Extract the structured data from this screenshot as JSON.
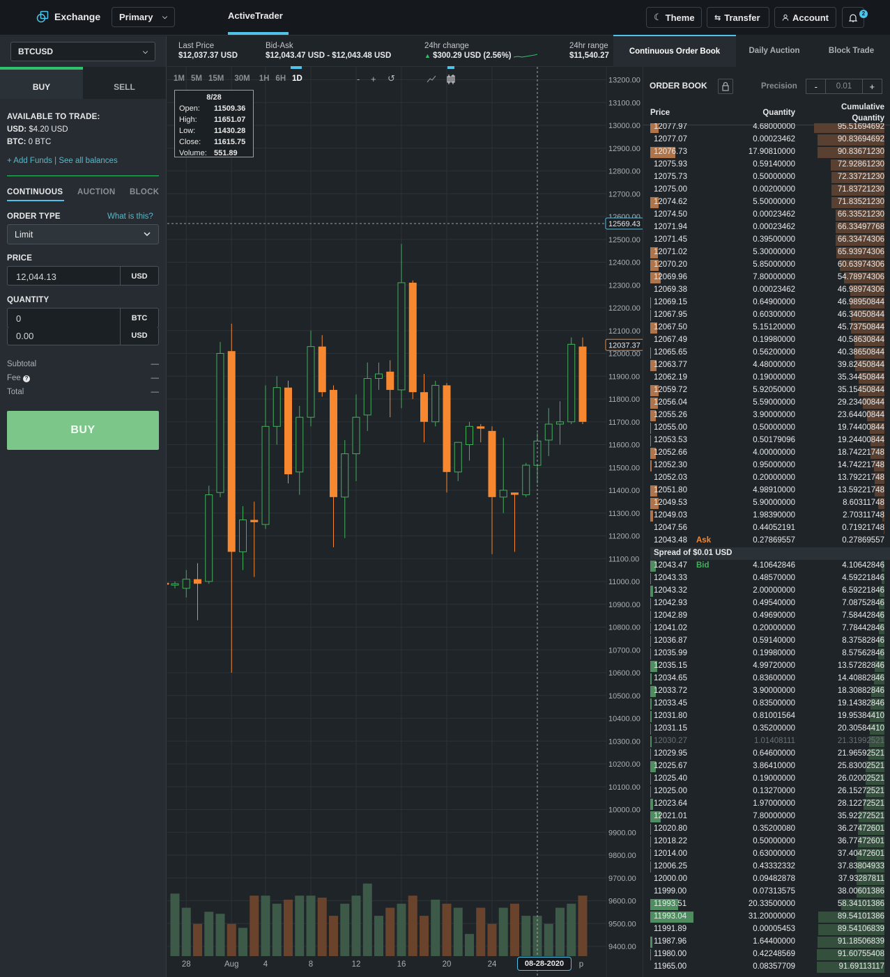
{
  "topbar": {
    "logo_text": "Exchange",
    "account_select": "Primary",
    "active_tab": "ActiveTrader",
    "theme": "Theme",
    "transfer": "Transfer",
    "account": "Account",
    "notif_count": "2"
  },
  "left": {
    "pair": "BTCUSD",
    "buy_tab": "BUY",
    "sell_tab": "SELL",
    "available_title": "AVAILABLE TO TRADE:",
    "usd_label": "USD:",
    "usd_value": "$4.20 USD",
    "btc_label": "BTC:",
    "btc_value": "0 BTC",
    "add_funds": "+ Add Funds",
    "sep": "|",
    "see_balances": "See all balances",
    "tabs": [
      "CONTINUOUS",
      "AUCTION",
      "BLOCK"
    ],
    "order_type_label": "ORDER TYPE",
    "what_is_this": "What is this?",
    "order_type": "Limit",
    "price_label": "PRICE",
    "price_value": "12,044.13",
    "price_unit": "USD",
    "quantity_label": "QUANTITY",
    "qty_btc": "0",
    "qty_btc_unit": "BTC",
    "qty_usd": "0.00",
    "qty_usd_unit": "USD",
    "subtotal": "Subtotal",
    "fee": "Fee",
    "total": "Total",
    "dash": "—",
    "buy_button": "BUY"
  },
  "ticker": {
    "last_label": "Last Price",
    "last_value": "$12,037.37 USD",
    "bidask_label": "Bid-Ask",
    "bidask_value": "$12,043.47 USD - $12,043.48 USD",
    "change_label": "24hr change",
    "change_value": "$300.29 USD (2.56%)",
    "range_label": "24hr range",
    "range_value": "$11,540.27"
  },
  "chart_toolbar": {
    "intervals": [
      "1M",
      "5M",
      "15M",
      "30M",
      "1H",
      "6H",
      "1D"
    ],
    "selected": "1D",
    "zoom_out": "-",
    "zoom_in": "+"
  },
  "tooltip": {
    "date": "8/28",
    "rows": [
      {
        "k": "Open:",
        "v": "11509.36"
      },
      {
        "k": "High:",
        "v": "11651.07"
      },
      {
        "k": "Low:",
        "v": "11430.28"
      },
      {
        "k": "Close:",
        "v": "11615.75"
      },
      {
        "k": "Volume:",
        "v": "551.89"
      }
    ]
  },
  "chart_data": {
    "type": "candlestick",
    "y_ticks": [
      13200,
      13100,
      13000,
      12900,
      12800,
      12700,
      12600,
      12500,
      12400,
      12300,
      12200,
      12100,
      12000,
      11900,
      11800,
      11700,
      11600,
      11500,
      11400,
      11300,
      11200,
      11100,
      11000,
      10900,
      10800,
      10700,
      10600,
      10500,
      10400,
      10300,
      10200,
      10100,
      10000,
      9900,
      9800,
      9700,
      9600,
      9500,
      9400
    ],
    "y_tick_labels": [
      "13200.00",
      "13100.00",
      "13000.00",
      "12900.00",
      "12800.00",
      "12700.00",
      "12600.00",
      "12500.00",
      "12400.00",
      "12300.00",
      "12200.00",
      "12100.00",
      "12000.00",
      "11900.00",
      "11800.00",
      "11700.00",
      "11600.00",
      "11500.00",
      "11400.00",
      "11300.00",
      "11200.00",
      "11100.00",
      "11000.00",
      "10900.00",
      "10800.00",
      "10700.00",
      "10600.00",
      "10500.00",
      "10400.00",
      "10300.00",
      "10200.00",
      "10100.00",
      "10000.00",
      "9900.00",
      "9800.00",
      "9700.00",
      "9600.00",
      "9500.00",
      "9400.00"
    ],
    "x_labels": [
      {
        "label": "28",
        "i": 1
      },
      {
        "label": "Aug",
        "i": 5
      },
      {
        "label": "4",
        "i": 8
      },
      {
        "label": "8",
        "i": 12
      },
      {
        "label": "12",
        "i": 16
      },
      {
        "label": "16",
        "i": 20
      },
      {
        "label": "20",
        "i": 24
      },
      {
        "label": "24",
        "i": 28
      },
      {
        "label": "p",
        "i": 36
      }
    ],
    "crosshair_date": "08-28-2020",
    "crosshair_index": 32,
    "crosshair_price_label": "12569.43",
    "crosshair_price": 12569.43,
    "last_price_label": "12037.37",
    "last_price": 12037.37,
    "candles": [
      {
        "o": 10990,
        "h": 11000,
        "l": 10970,
        "c": 10990
      },
      {
        "o": 10970,
        "h": 11050,
        "l": 10930,
        "c": 11010
      },
      {
        "o": 11010,
        "h": 11080,
        "l": 10830,
        "c": 10990
      },
      {
        "o": 11000,
        "h": 11420,
        "l": 10990,
        "c": 11380
      },
      {
        "o": 11390,
        "h": 12050,
        "l": 11370,
        "c": 12000
      },
      {
        "o": 12010,
        "h": 12130,
        "l": 10600,
        "c": 11130
      },
      {
        "o": 11130,
        "h": 11330,
        "l": 11050,
        "c": 11270
      },
      {
        "o": 11270,
        "h": 11350,
        "l": 11020,
        "c": 11260
      },
      {
        "o": 11250,
        "h": 11860,
        "l": 11230,
        "c": 11680
      },
      {
        "o": 11680,
        "h": 11900,
        "l": 11600,
        "c": 11850
      },
      {
        "o": 11850,
        "h": 11880,
        "l": 11430,
        "c": 11470
      },
      {
        "o": 11480,
        "h": 11770,
        "l": 11380,
        "c": 11720
      },
      {
        "o": 11720,
        "h": 12100,
        "l": 11680,
        "c": 12030
      },
      {
        "o": 12030,
        "h": 12080,
        "l": 11810,
        "c": 11830
      },
      {
        "o": 11840,
        "h": 11860,
        "l": 11150,
        "c": 11370
      },
      {
        "o": 11370,
        "h": 11620,
        "l": 11190,
        "c": 11560
      },
      {
        "o": 11560,
        "h": 11820,
        "l": 11440,
        "c": 11720
      },
      {
        "o": 11730,
        "h": 11960,
        "l": 11660,
        "c": 11890
      },
      {
        "o": 11890,
        "h": 11960,
        "l": 11840,
        "c": 11910
      },
      {
        "o": 11920,
        "h": 11970,
        "l": 11720,
        "c": 11840
      },
      {
        "o": 11840,
        "h": 12480,
        "l": 11760,
        "c": 12310
      },
      {
        "o": 12310,
        "h": 12320,
        "l": 11800,
        "c": 11830
      },
      {
        "o": 11830,
        "h": 11910,
        "l": 11610,
        "c": 11700
      },
      {
        "o": 11700,
        "h": 11880,
        "l": 11680,
        "c": 11860
      },
      {
        "o": 11860,
        "h": 11870,
        "l": 11390,
        "c": 11480
      },
      {
        "o": 11480,
        "h": 11600,
        "l": 11440,
        "c": 11610
      },
      {
        "o": 11600,
        "h": 11700,
        "l": 11530,
        "c": 11680
      },
      {
        "o": 11680,
        "h": 11690,
        "l": 11610,
        "c": 11670
      },
      {
        "o": 11660,
        "h": 11680,
        "l": 11120,
        "c": 11370
      },
      {
        "o": 11370,
        "h": 11630,
        "l": 11300,
        "c": 11400
      },
      {
        "o": 11390,
        "h": 11390,
        "l": 11130,
        "c": 11380
      },
      {
        "o": 11380,
        "h": 11520,
        "l": 11370,
        "c": 11510
      },
      {
        "o": 11509.36,
        "h": 11651.07,
        "l": 11430.28,
        "c": 11615.75
      },
      {
        "o": 11620,
        "h": 11760,
        "l": 11550,
        "c": 11690
      },
      {
        "o": 11690,
        "h": 11790,
        "l": 11600,
        "c": 11700
      },
      {
        "o": 11700,
        "h": 12070,
        "l": 11690,
        "c": 12040
      },
      {
        "o": 12030,
        "h": 12070,
        "l": 11690,
        "c": 11700
      }
    ],
    "volumes": [
      310,
      240,
      160,
      220,
      210,
      160,
      140,
      300,
      300,
      260,
      280,
      300,
      300,
      290,
      200,
      260,
      300,
      360,
      200,
      240,
      260,
      300,
      200,
      280,
      260,
      240,
      110,
      240,
      160,
      240,
      260,
      200,
      200,
      160,
      240,
      260,
      300
    ]
  },
  "orderbook": {
    "tabs": [
      "Continuous Order Book",
      "Daily Auction",
      "Block Trade"
    ],
    "title": "ORDER BOOK",
    "precision_label": "Precision",
    "precision_value": "0.01",
    "minus": "-",
    "plus": "+",
    "col_price": "Price",
    "col_qty": "Quantity",
    "col_cum1": "Cumulative",
    "col_cum2": "Quantity",
    "ask_tag": "Ask",
    "bid_tag": "Bid",
    "spread": "Spread of $0.01 USD",
    "asks": [
      [
        "12077.97",
        "4.68000000",
        "95.51694692",
        0.3,
        0.92
      ],
      [
        "12077.07",
        "0.00023462",
        "90.83694692",
        0.0,
        0.87
      ],
      [
        "12076.73",
        "17.90810000",
        "90.83671230",
        0.9,
        0.87
      ],
      [
        "12075.93",
        "0.59140000",
        "72.92861230",
        0.0,
        0.7
      ],
      [
        "12075.73",
        "0.50000000",
        "72.33721230",
        0.0,
        0.69
      ],
      [
        "12075.00",
        "0.00200000",
        "71.83721230",
        0.0,
        0.69
      ],
      [
        "12074.62",
        "5.50000000",
        "71.83521230",
        0.3,
        0.69
      ],
      [
        "12074.50",
        "0.00023462",
        "66.33521230",
        0.0,
        0.64
      ],
      [
        "12071.94",
        "0.00023462",
        "66.33497768",
        0.0,
        0.64
      ],
      [
        "12071.45",
        "0.39500000",
        "66.33474306",
        0.0,
        0.64
      ],
      [
        "12071.02",
        "5.30000000",
        "65.93974306",
        0.28,
        0.63
      ],
      [
        "12070.20",
        "5.85000000",
        "60.63974306",
        0.3,
        0.58
      ],
      [
        "12069.96",
        "7.80000000",
        "54.78974306",
        0.38,
        0.53
      ],
      [
        "12069.38",
        "0.00023462",
        "46.98974306",
        0.0,
        0.45
      ],
      [
        "12069.15",
        "0.64900000",
        "46.98950844",
        0.03,
        0.45
      ],
      [
        "12067.95",
        "0.60300000",
        "46.34050844",
        0.03,
        0.44
      ],
      [
        "12067.50",
        "5.15120000",
        "45.73750844",
        0.26,
        0.44
      ],
      [
        "12067.49",
        "0.19980000",
        "40.58630844",
        0.0,
        0.39
      ],
      [
        "12065.65",
        "0.56200000",
        "40.38650844",
        0.03,
        0.39
      ],
      [
        "12063.77",
        "4.48000000",
        "39.82450844",
        0.23,
        0.38
      ],
      [
        "12062.19",
        "0.19000000",
        "35.34450844",
        0.0,
        0.34
      ],
      [
        "12059.72",
        "5.92050000",
        "35.15450844",
        0.3,
        0.34
      ],
      [
        "12056.04",
        "5.59000000",
        "29.23400844",
        0.28,
        0.28
      ],
      [
        "12055.26",
        "3.90000000",
        "23.64400844",
        0.2,
        0.23
      ],
      [
        "12055.00",
        "0.50000000",
        "19.74400844",
        0.02,
        0.19
      ],
      [
        "12053.53",
        "0.50179096",
        "19.24400844",
        0.02,
        0.18
      ],
      [
        "12052.66",
        "4.00000000",
        "18.74221748",
        0.2,
        0.18
      ],
      [
        "12052.30",
        "0.95000000",
        "14.74221748",
        0.05,
        0.14
      ],
      [
        "12052.03",
        "0.20000000",
        "13.79221748",
        0.0,
        0.13
      ],
      [
        "12051.80",
        "4.98910000",
        "13.59221748",
        0.25,
        0.13
      ],
      [
        "12049.53",
        "5.90000000",
        "8.60311748",
        0.3,
        0.08
      ],
      [
        "12049.03",
        "1.98390000",
        "2.70311748",
        0.1,
        0.03
      ],
      [
        "12047.56",
        "0.44052191",
        "0.71921748",
        0.0,
        0.01
      ],
      [
        "12043.48",
        "0.27869557",
        "0.27869557",
        0.0,
        0.0
      ]
    ],
    "bids": [
      [
        "12043.47",
        "4.10642846",
        "4.10642846",
        0.2,
        0.04
      ],
      [
        "12043.33",
        "0.48570000",
        "4.59221846",
        0.02,
        0.04
      ],
      [
        "12043.32",
        "2.00000000",
        "6.59221846",
        0.1,
        0.06
      ],
      [
        "12042.93",
        "0.49540000",
        "7.08752846",
        0.02,
        0.07
      ],
      [
        "12042.89",
        "0.49690000",
        "7.58442846",
        0.02,
        0.07
      ],
      [
        "12041.02",
        "0.20000000",
        "7.78442846",
        0.01,
        0.07
      ],
      [
        "12036.87",
        "0.59140000",
        "8.37582846",
        0.03,
        0.08
      ],
      [
        "12035.99",
        "0.19980000",
        "8.57562846",
        0.01,
        0.08
      ],
      [
        "12035.15",
        "4.99720000",
        "13.57282846",
        0.25,
        0.13
      ],
      [
        "12034.65",
        "0.83600000",
        "14.40882846",
        0.04,
        0.14
      ],
      [
        "12033.72",
        "3.90000000",
        "18.30882846",
        0.2,
        0.17
      ],
      [
        "12033.45",
        "0.83500000",
        "19.14382846",
        0.04,
        0.18
      ],
      [
        "12031.80",
        "0.81001564",
        "19.95384410",
        0.04,
        0.19
      ],
      [
        "12031.15",
        "0.35200000",
        "20.30584410",
        0.02,
        0.19
      ],
      [
        "12030.27",
        "1.01408111",
        "21.31992521",
        0.05,
        0.2
      ],
      [
        "12029.95",
        "0.64600000",
        "21.96592521",
        0.03,
        0.21
      ],
      [
        "12025.67",
        "3.86410000",
        "25.83002521",
        0.19,
        0.25
      ],
      [
        "12025.40",
        "0.19000000",
        "26.02002521",
        0.01,
        0.25
      ],
      [
        "12025.00",
        "0.13270000",
        "26.15272521",
        0.01,
        0.25
      ],
      [
        "12023.64",
        "1.97000000",
        "28.12272521",
        0.1,
        0.27
      ],
      [
        "12021.01",
        "7.80000000",
        "35.92272521",
        0.38,
        0.34
      ],
      [
        "12020.80",
        "0.35200080",
        "36.27472601",
        0.02,
        0.35
      ],
      [
        "12018.22",
        "0.50000000",
        "36.77472601",
        0.02,
        0.35
      ],
      [
        "12014.00",
        "0.63000000",
        "37.40472601",
        0.03,
        0.36
      ],
      [
        "12006.25",
        "0.43332332",
        "37.83804933",
        0.02,
        0.36
      ],
      [
        "12000.00",
        "0.09482878",
        "37.93287811",
        0.0,
        0.36
      ],
      [
        "11999.00",
        "0.07313575",
        "38.00601386",
        0.0,
        0.36
      ],
      [
        "11993.51",
        "20.33500000",
        "58.34101386",
        1.0,
        0.56
      ],
      [
        "11993.04",
        "31.20000000",
        "89.54101386",
        1.55,
        0.86
      ],
      [
        "11991.89",
        "0.00005453",
        "89.54106839",
        0.0,
        0.86
      ],
      [
        "11987.96",
        "1.64400000",
        "91.18506839",
        0.08,
        0.87
      ],
      [
        "11980.00",
        "0.42248569",
        "91.60755408",
        0.02,
        0.88
      ],
      [
        "11965.00",
        "0.08357709",
        "91.69113117",
        0.0,
        0.88
      ]
    ]
  }
}
